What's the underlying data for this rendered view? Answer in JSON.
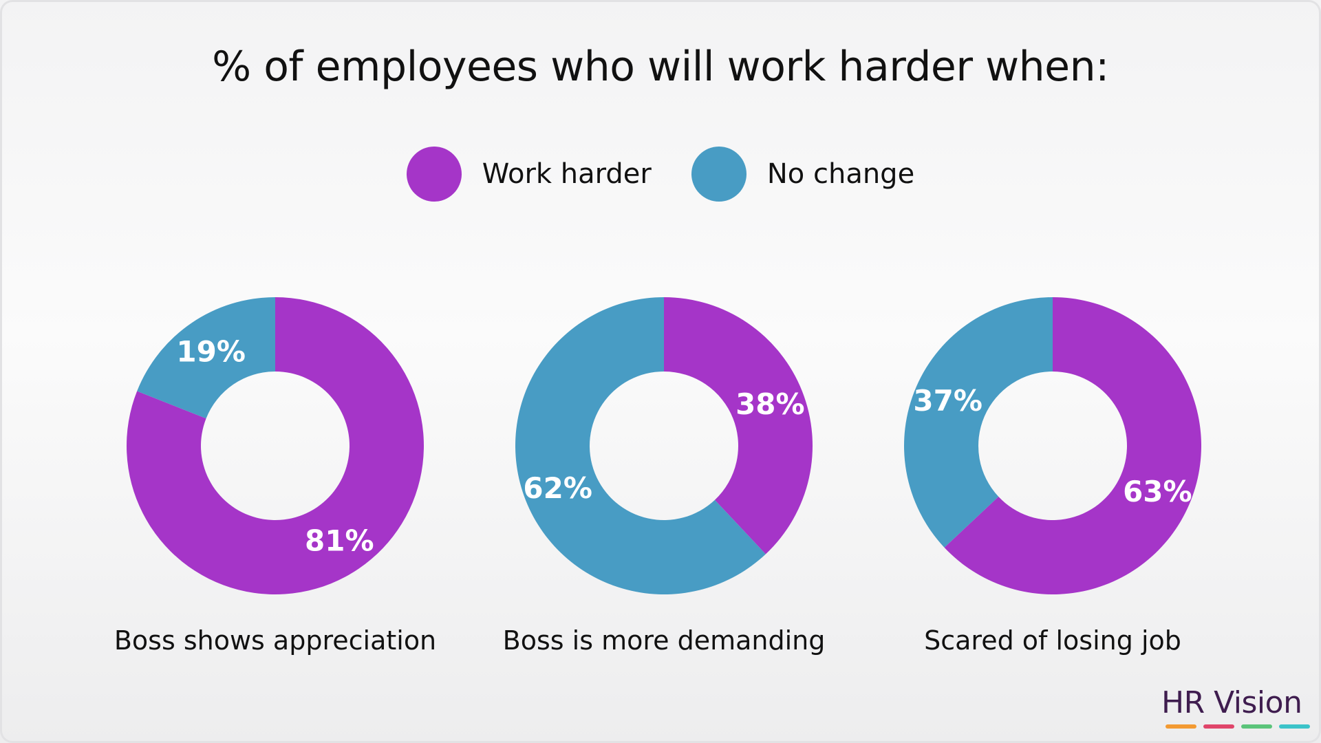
{
  "title": "% of employees who will work harder when:",
  "colors": {
    "work_harder": "#a535c8",
    "no_change": "#489cc4"
  },
  "legend": [
    {
      "label": "Work harder",
      "color": "#a535c8"
    },
    {
      "label": "No change",
      "color": "#489cc4"
    }
  ],
  "chart_data": {
    "type": "pie",
    "style": "donut",
    "title": "% of employees who will work harder when:",
    "series_names": [
      "Work harder",
      "No change"
    ],
    "legend_placement": "top-center",
    "charts": [
      {
        "category": "Boss shows appreciation",
        "values": {
          "Work harder": 81,
          "No change": 19
        },
        "labels": {
          "Work harder": "81%",
          "No change": "19%"
        }
      },
      {
        "category": "Boss is more demanding",
        "values": {
          "Work harder": 38,
          "No change": 62
        },
        "labels": {
          "Work harder": "38%",
          "No change": "62%"
        }
      },
      {
        "category": "Scared of losing job",
        "values": {
          "Work harder": 63,
          "No change": 37
        },
        "labels": {
          "Work harder": "63%",
          "No change": "37%"
        }
      }
    ]
  },
  "logo": {
    "text": "HR Vision",
    "bar_colors": [
      "#f39a32",
      "#e0456a",
      "#5bc47a",
      "#3cc3c9"
    ]
  }
}
